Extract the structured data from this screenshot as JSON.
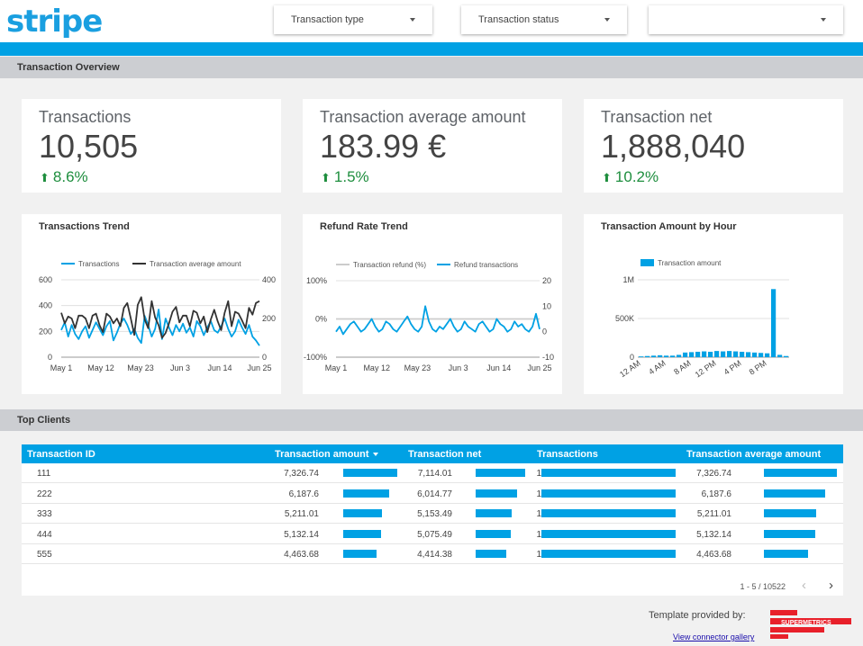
{
  "brand": {
    "logo_text": "stripe",
    "accent": "#00a1e4",
    "positive": "#1e8e3e"
  },
  "filters": [
    {
      "label": "Transaction type",
      "icon": "chevron-down-icon"
    },
    {
      "label": "Transaction status",
      "icon": "chevron-down-icon"
    },
    {
      "label": "",
      "icon": "chevron-down-icon"
    }
  ],
  "sections": {
    "overview": "Transaction Overview",
    "clients": "Top Clients"
  },
  "kpis": [
    {
      "label": "Transactions",
      "value": "10,505",
      "delta": "8.6%",
      "delta_icon": "arrow-up-icon"
    },
    {
      "label": "Transaction average amount",
      "value": "183.99 €",
      "delta": "1.5%",
      "delta_icon": "arrow-up-icon"
    },
    {
      "label": "Transaction net",
      "value": "1,888,040",
      "delta": "10.2%",
      "delta_icon": "arrow-up-icon"
    }
  ],
  "chart_data": [
    {
      "type": "line",
      "title": "Transactions Trend",
      "x_ticks": [
        "May 1",
        "May 12",
        "May 23",
        "Jun 3",
        "Jun 14",
        "Jun 25"
      ],
      "y_left_ticks": [
        "600",
        "400",
        "200",
        "0"
      ],
      "y_right_ticks": [
        "400",
        "200",
        "0"
      ],
      "ylim_left": [
        0,
        600
      ],
      "ylim_right": [
        0,
        400
      ],
      "legend_position": "top",
      "series": [
        {
          "name": "Transactions",
          "axis": "left",
          "color": "#00a1e4",
          "values": [
            210,
            270,
            160,
            250,
            180,
            140,
            200,
            240,
            150,
            210,
            270,
            220,
            170,
            240,
            280,
            130,
            190,
            260,
            300,
            250,
            180,
            220,
            150,
            110,
            320,
            250,
            160,
            220,
            370,
            140,
            300,
            230,
            170,
            250,
            200,
            260,
            190,
            230,
            160,
            280,
            240,
            170,
            230,
            280,
            210,
            190,
            240,
            300,
            220,
            160,
            200,
            290,
            230,
            180,
            250,
            160,
            130,
            90
          ]
        },
        {
          "name": "Transaction average amount",
          "axis": "right",
          "color": "#333333",
          "values": [
            230,
            175,
            210,
            200,
            150,
            215,
            215,
            200,
            150,
            215,
            225,
            165,
            130,
            225,
            210,
            175,
            200,
            160,
            255,
            280,
            200,
            115,
            270,
            310,
            195,
            150,
            290,
            205,
            165,
            100,
            125,
            175,
            235,
            260,
            180,
            215,
            215,
            160,
            240,
            230,
            175,
            210,
            130,
            195,
            245,
            185,
            140,
            230,
            290,
            160,
            235,
            225,
            190,
            150,
            255,
            220,
            280,
            290
          ]
        }
      ]
    },
    {
      "type": "line",
      "title": "Refund Rate Trend",
      "x_ticks": [
        "May 1",
        "May 12",
        "May 23",
        "Jun 3",
        "Jun 14",
        "Jun 25"
      ],
      "y_left_ticks": [
        "100%",
        "0%",
        "-100%"
      ],
      "y_right_ticks": [
        "20",
        "10",
        "0",
        "-10"
      ],
      "ylim_left": [
        -100,
        100
      ],
      "ylim_right": [
        -10,
        20
      ],
      "legend_position": "top",
      "series": [
        {
          "name": "Transaction refund (%)",
          "axis": "left",
          "color": "#cccccc",
          "values": [
            0,
            0,
            0,
            0,
            0,
            0,
            0,
            0,
            0,
            0,
            0,
            0,
            0,
            0,
            0,
            0,
            0,
            0,
            0,
            0,
            0,
            0,
            0,
            0,
            0,
            0,
            0,
            0,
            0,
            0,
            0,
            0,
            0,
            0,
            0,
            0,
            0,
            0,
            0,
            0,
            0,
            0,
            0,
            0,
            0,
            0,
            0,
            0,
            0,
            0,
            0,
            0,
            0,
            0,
            0,
            0,
            0,
            0
          ]
        },
        {
          "name": "Refund transactions",
          "axis": "right",
          "color": "#00a1e4",
          "values": [
            0,
            2,
            -1,
            1,
            3,
            4,
            2,
            0,
            1,
            3,
            5,
            2,
            0,
            1,
            4,
            3,
            1,
            0,
            2,
            4,
            6,
            3,
            1,
            0,
            2,
            10,
            4,
            1,
            0,
            2,
            1,
            3,
            5,
            2,
            0,
            1,
            4,
            2,
            1,
            0,
            3,
            4,
            2,
            0,
            1,
            5,
            3,
            2,
            0,
            1,
            4,
            2,
            3,
            1,
            0,
            2,
            7,
            1
          ]
        }
      ]
    },
    {
      "type": "bar",
      "title": "Transaction Amount by Hour",
      "categories": [
        "12 AM",
        "1 AM",
        "2 AM",
        "3 AM",
        "4 AM",
        "5 AM",
        "6 AM",
        "7 AM",
        "8 AM",
        "9 AM",
        "10 AM",
        "11 AM",
        "12 PM",
        "1 PM",
        "2 PM",
        "3 PM",
        "4 PM",
        "5 PM",
        "6 PM",
        "7 PM",
        "8 PM",
        "9 PM",
        "10 PM",
        "11 PM"
      ],
      "x_ticks": [
        "12 AM",
        "4 AM",
        "8 AM",
        "12 PM",
        "4 PM",
        "8 PM"
      ],
      "y_ticks": [
        "1M",
        "500K",
        "0"
      ],
      "ylim": [
        0,
        1000000
      ],
      "legend_position": "top",
      "series": [
        {
          "name": "Transaction amount",
          "color": "#00a1e4",
          "values": [
            10000,
            15000,
            20000,
            25000,
            20000,
            20000,
            30000,
            60000,
            65000,
            70000,
            75000,
            70000,
            80000,
            75000,
            80000,
            75000,
            70000,
            65000,
            60000,
            55000,
            50000,
            880000,
            30000,
            15000
          ]
        }
      ]
    }
  ],
  "table": {
    "columns": [
      "Transaction ID",
      "Transaction amount",
      "Transaction net",
      "Transactions",
      "Transaction average amount"
    ],
    "rows": [
      {
        "id": "111",
        "amount": "7,326.74",
        "amount_frac": 1.0,
        "net": "7,114.01",
        "net_frac": 1.0,
        "tx": "1",
        "tx_frac": 1.0,
        "avg": "7,326.74",
        "avg_frac": 1.0
      },
      {
        "id": "222",
        "amount": "6,187.6",
        "amount_frac": 0.845,
        "net": "6,014.77",
        "net_frac": 0.845,
        "tx": "1",
        "tx_frac": 1.0,
        "avg": "6,187.6",
        "avg_frac": 0.845
      },
      {
        "id": "333",
        "amount": "5,211.01",
        "amount_frac": 0.711,
        "net": "5,153.49",
        "net_frac": 0.724,
        "tx": "1",
        "tx_frac": 1.0,
        "avg": "5,211.01",
        "avg_frac": 0.711
      },
      {
        "id": "444",
        "amount": "5,132.14",
        "amount_frac": 0.7,
        "net": "5,075.49",
        "net_frac": 0.713,
        "tx": "1",
        "tx_frac": 1.0,
        "avg": "5,132.14",
        "avg_frac": 0.7
      },
      {
        "id": "555",
        "amount": "4,463.68",
        "amount_frac": 0.609,
        "net": "4,414.38",
        "net_frac": 0.62,
        "tx": "1",
        "tx_frac": 1.0,
        "avg": "4,463.68",
        "avg_frac": 0.609
      }
    ],
    "pagination": "1 - 5 / 10522",
    "prev_icon": "chevron-left-icon",
    "next_icon": "chevron-right-icon"
  },
  "footer": {
    "credit": "Template provided by:",
    "link": "View connector gallery",
    "sponsor_logo_text": "SUPERMETRICS"
  }
}
